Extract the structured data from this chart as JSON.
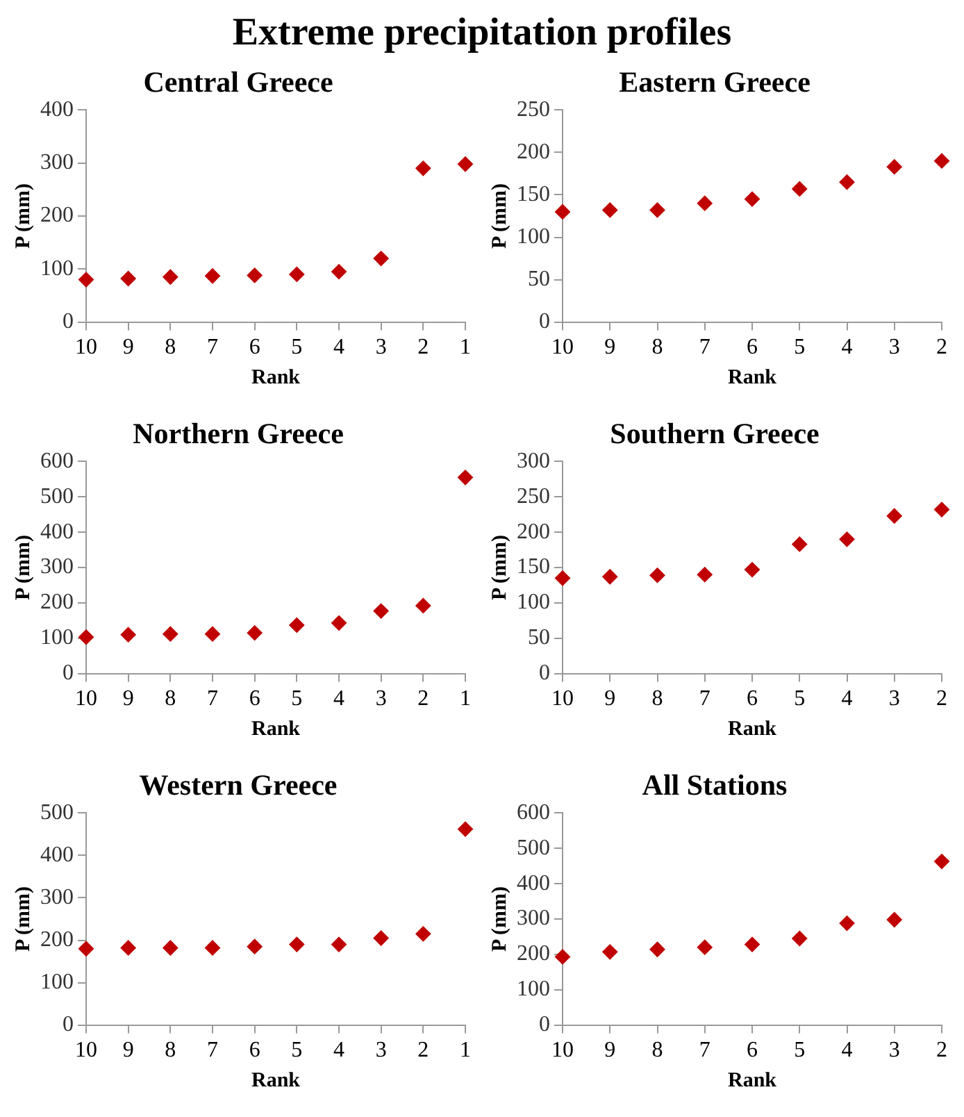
{
  "chart_data": [
    {
      "type": "other",
      "title": "Extreme precipitation profiles"
    },
    {
      "type": "scatter",
      "title": "Central Greece",
      "xlabel": "Rank",
      "ylabel": "P (mm)",
      "categories": [
        "10",
        "9",
        "8",
        "7",
        "6",
        "5",
        "4",
        "3",
        "2",
        "1"
      ],
      "series": [
        {
          "color": "#c00000",
          "values": [
            80,
            82,
            85,
            87,
            88,
            90,
            95,
            120,
            290,
            298
          ]
        }
      ],
      "ylim": [
        0,
        400
      ],
      "yticks": [
        0,
        100,
        200,
        300,
        400
      ],
      "marker": "diamond",
      "legend": false,
      "grid": false
    },
    {
      "type": "scatter",
      "title": "Eastern Greece",
      "xlabel": "Rank",
      "ylabel": "P (mm)",
      "categories": [
        "10",
        "9",
        "8",
        "7",
        "6",
        "5",
        "4",
        "3",
        "2"
      ],
      "series": [
        {
          "color": "#c00000",
          "values": [
            130,
            132,
            132,
            140,
            145,
            157,
            165,
            183,
            190
          ]
        }
      ],
      "ylim": [
        0,
        250
      ],
      "yticks": [
        0,
        50,
        100,
        150,
        200,
        250
      ],
      "marker": "diamond",
      "legend": false,
      "grid": false
    },
    {
      "type": "scatter",
      "title": "Northern Greece",
      "xlabel": "Rank",
      "ylabel": "P (mm)",
      "categories": [
        "10",
        "9",
        "8",
        "7",
        "6",
        "5",
        "4",
        "3",
        "2",
        "1"
      ],
      "series": [
        {
          "color": "#c00000",
          "values": [
            103,
            110,
            112,
            112,
            115,
            137,
            143,
            177,
            192,
            555
          ]
        }
      ],
      "ylim": [
        0,
        600
      ],
      "yticks": [
        0,
        100,
        200,
        300,
        400,
        500,
        600
      ],
      "marker": "diamond",
      "legend": false,
      "grid": false
    },
    {
      "type": "scatter",
      "title": "Southern Greece",
      "xlabel": "Rank",
      "ylabel": "P (mm)",
      "categories": [
        "10",
        "9",
        "8",
        "7",
        "6",
        "5",
        "4",
        "3",
        "2"
      ],
      "series": [
        {
          "color": "#c00000",
          "values": [
            135,
            137,
            139,
            140,
            147,
            183,
            190,
            223,
            232
          ]
        }
      ],
      "ylim": [
        0,
        300
      ],
      "yticks": [
        0,
        50,
        100,
        150,
        200,
        250,
        300
      ],
      "marker": "diamond",
      "legend": false,
      "grid": false
    },
    {
      "type": "scatter",
      "title": "Western Greece",
      "xlabel": "Rank",
      "ylabel": "P (mm)",
      "categories": [
        "10",
        "9",
        "8",
        "7",
        "6",
        "5",
        "4",
        "3",
        "2",
        "1"
      ],
      "series": [
        {
          "color": "#c00000",
          "values": [
            180,
            182,
            182,
            182,
            185,
            190,
            190,
            205,
            215,
            462
          ]
        }
      ],
      "ylim": [
        0,
        500
      ],
      "yticks": [
        0,
        100,
        200,
        300,
        400,
        500
      ],
      "marker": "diamond",
      "legend": false,
      "grid": false
    },
    {
      "type": "scatter",
      "title": "All Stations",
      "xlabel": "Rank",
      "ylabel": "P (mm)",
      "categories": [
        "10",
        "9",
        "8",
        "7",
        "6",
        "5",
        "4",
        "3",
        "2"
      ],
      "series": [
        {
          "color": "#c00000",
          "values": [
            193,
            207,
            214,
            220,
            228,
            245,
            288,
            298,
            463
          ]
        }
      ],
      "ylim": [
        0,
        600
      ],
      "yticks": [
        0,
        100,
        200,
        300,
        400,
        500,
        600
      ],
      "marker": "diamond",
      "legend": false,
      "grid": false
    }
  ]
}
